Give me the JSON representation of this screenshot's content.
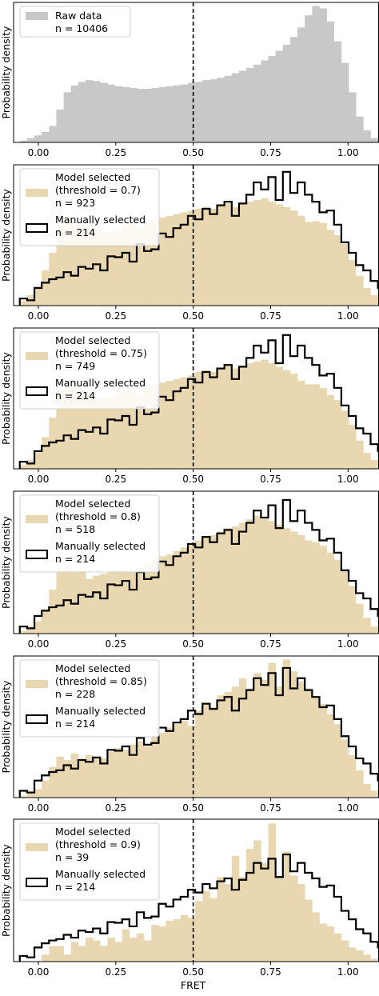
{
  "chart_data": [
    {
      "type": "bar",
      "subtype": "histogram",
      "ylabel": "Probability density",
      "xlim": [
        -0.08,
        1.1
      ],
      "xticks": [
        0.0,
        0.25,
        0.5,
        0.75,
        1.0
      ],
      "xtick_labels": [
        "0.00",
        "0.25",
        "0.50",
        "0.75",
        "1.00"
      ],
      "bin_width": 0.0236,
      "vline": 0.5,
      "legend_placement": "top-left",
      "series": [
        {
          "name": "Raw data",
          "n_label": "n = 10406",
          "style": "filled",
          "color": "#c8c8c8",
          "values": [
            0.02,
            0.05,
            0.08,
            0.12,
            0.19,
            0.38,
            0.58,
            0.66,
            0.7,
            0.72,
            0.71,
            0.69,
            0.67,
            0.65,
            0.64,
            0.63,
            0.62,
            0.62,
            0.63,
            0.64,
            0.65,
            0.66,
            0.67,
            0.69,
            0.7,
            0.72,
            0.73,
            0.75,
            0.77,
            0.8,
            0.83,
            0.86,
            0.9,
            0.95,
            1.0,
            1.06,
            1.13,
            1.22,
            1.33,
            1.47,
            1.58,
            1.55,
            1.4,
            1.17,
            0.92,
            0.58,
            0.3,
            0.14,
            0.05,
            0.02
          ]
        }
      ]
    },
    {
      "type": "bar",
      "subtype": "histogram",
      "ylabel": "Probability density",
      "xlim": [
        -0.08,
        1.1
      ],
      "xticks": [
        0.0,
        0.25,
        0.5,
        0.75,
        1.0
      ],
      "xtick_labels": [
        "0.00",
        "0.25",
        "0.50",
        "0.75",
        "1.00"
      ],
      "bin_width": 0.0236,
      "vline": 0.5,
      "legend_placement": "top-left",
      "series": [
        {
          "name": "Model selected",
          "threshold_label": "(threshold = 0.7)",
          "n_label": "n = 923",
          "style": "filled",
          "color": "#e8d7b0",
          "values": [
            0.05,
            0.12,
            0.22,
            0.4,
            0.6,
            0.92,
            0.98,
            0.94,
            0.9,
            0.88,
            0.86,
            0.84,
            0.82,
            0.85,
            0.9,
            0.92,
            0.88,
            0.94,
            0.98,
            1.0,
            1.02,
            1.04,
            1.06,
            1.08,
            1.1,
            1.12,
            1.1,
            1.14,
            1.16,
            1.12,
            1.15,
            1.18,
            1.2,
            1.22,
            1.18,
            1.15,
            1.12,
            1.08,
            1.02,
            0.95,
            0.96,
            0.94,
            0.86,
            0.8,
            0.7,
            0.52,
            0.34,
            0.2,
            0.12,
            0.06
          ]
        },
        {
          "name": "Manually selected",
          "n_label": "n = 214",
          "style": "step",
          "color": "#000000",
          "values": [
            0.08,
            0.06,
            0.2,
            0.26,
            0.3,
            0.32,
            0.38,
            0.34,
            0.44,
            0.42,
            0.47,
            0.4,
            0.56,
            0.55,
            0.6,
            0.5,
            0.7,
            0.62,
            0.64,
            0.82,
            0.78,
            0.88,
            0.92,
            1.02,
            0.98,
            1.1,
            1.04,
            1.14,
            1.18,
            1.02,
            1.16,
            1.26,
            1.4,
            1.32,
            1.46,
            1.2,
            1.52,
            1.28,
            1.4,
            1.26,
            1.18,
            1.06,
            1.08,
            0.92,
            0.72,
            0.6,
            0.46,
            0.4,
            0.28,
            0.2
          ]
        }
      ]
    },
    {
      "type": "bar",
      "subtype": "histogram",
      "ylabel": "Probability density",
      "xlim": [
        -0.08,
        1.1
      ],
      "xticks": [
        0.0,
        0.25,
        0.5,
        0.75,
        1.0
      ],
      "xtick_labels": [
        "0.00",
        "0.25",
        "0.50",
        "0.75",
        "1.00"
      ],
      "bin_width": 0.0236,
      "vline": 0.5,
      "legend_placement": "top-left",
      "series": [
        {
          "name": "Model selected",
          "threshold_label": "(threshold = 0.75)",
          "n_label": "n = 749",
          "style": "filled",
          "color": "#e8d7b0",
          "values": [
            0.04,
            0.1,
            0.18,
            0.36,
            0.58,
            0.88,
            0.92,
            0.9,
            0.88,
            0.86,
            0.82,
            0.8,
            0.82,
            0.86,
            0.9,
            0.88,
            0.84,
            0.92,
            0.96,
            0.98,
            1.0,
            1.02,
            1.04,
            1.06,
            1.1,
            1.12,
            1.1,
            1.14,
            1.18,
            1.14,
            1.16,
            1.2,
            1.22,
            1.24,
            1.2,
            1.16,
            1.12,
            1.08,
            1.0,
            0.96,
            0.96,
            0.92,
            0.84,
            0.78,
            0.66,
            0.5,
            0.32,
            0.18,
            0.1,
            0.05
          ]
        },
        {
          "name": "Manually selected",
          "n_label": "n = 214",
          "style": "step",
          "color": "#000000",
          "values": [
            0.08,
            0.06,
            0.2,
            0.26,
            0.3,
            0.32,
            0.38,
            0.34,
            0.44,
            0.42,
            0.47,
            0.4,
            0.56,
            0.55,
            0.6,
            0.5,
            0.7,
            0.62,
            0.64,
            0.82,
            0.78,
            0.88,
            0.92,
            1.02,
            0.98,
            1.1,
            1.04,
            1.14,
            1.18,
            1.02,
            1.16,
            1.26,
            1.4,
            1.32,
            1.46,
            1.2,
            1.52,
            1.28,
            1.4,
            1.26,
            1.18,
            1.06,
            1.08,
            0.92,
            0.72,
            0.6,
            0.46,
            0.4,
            0.28,
            0.2
          ]
        }
      ]
    },
    {
      "type": "bar",
      "subtype": "histogram",
      "ylabel": "Probability density",
      "xlim": [
        -0.08,
        1.1
      ],
      "xticks": [
        0.0,
        0.25,
        0.5,
        0.75,
        1.0
      ],
      "xtick_labels": [
        "0.00",
        "0.25",
        "0.50",
        "0.75",
        "1.00"
      ],
      "bin_width": 0.0236,
      "vline": 0.5,
      "legend_placement": "top-left",
      "series": [
        {
          "name": "Model selected",
          "threshold_label": "(threshold = 0.8)",
          "n_label": "n = 518",
          "style": "filled",
          "color": "#e8d7b0",
          "values": [
            0.03,
            0.08,
            0.14,
            0.28,
            0.5,
            0.74,
            0.76,
            0.72,
            0.7,
            0.62,
            0.66,
            0.68,
            0.7,
            0.72,
            0.74,
            0.7,
            0.72,
            0.8,
            0.84,
            0.88,
            0.9,
            0.94,
            0.98,
            1.02,
            1.06,
            1.1,
            1.12,
            1.16,
            1.2,
            1.22,
            1.26,
            1.3,
            1.34,
            1.32,
            1.28,
            1.24,
            1.2,
            1.16,
            1.12,
            1.06,
            1.04,
            1.0,
            0.92,
            0.84,
            0.72,
            0.54,
            0.34,
            0.18,
            0.08,
            0.04
          ]
        },
        {
          "name": "Manually selected",
          "n_label": "n = 214",
          "style": "step",
          "color": "#000000",
          "values": [
            0.08,
            0.06,
            0.2,
            0.26,
            0.3,
            0.32,
            0.38,
            0.34,
            0.44,
            0.42,
            0.47,
            0.4,
            0.56,
            0.55,
            0.6,
            0.5,
            0.7,
            0.62,
            0.64,
            0.82,
            0.78,
            0.88,
            0.92,
            1.02,
            0.98,
            1.1,
            1.04,
            1.14,
            1.18,
            1.02,
            1.16,
            1.26,
            1.4,
            1.32,
            1.46,
            1.2,
            1.52,
            1.28,
            1.4,
            1.26,
            1.18,
            1.06,
            1.08,
            0.92,
            0.72,
            0.6,
            0.46,
            0.4,
            0.28,
            0.2
          ]
        }
      ]
    },
    {
      "type": "bar",
      "subtype": "histogram",
      "ylabel": "Probability density",
      "xlim": [
        -0.08,
        1.1
      ],
      "xticks": [
        0.0,
        0.25,
        0.5,
        0.75,
        1.0
      ],
      "xtick_labels": [
        "0.00",
        "0.25",
        "0.50",
        "0.75",
        "1.00"
      ],
      "bin_width": 0.0236,
      "vline": 0.5,
      "legend_placement": "top-left",
      "series": [
        {
          "name": "Model selected",
          "threshold_label": "(threshold = 0.85)",
          "n_label": "n = 228",
          "style": "filled",
          "color": "#e8d7b0",
          "values": [
            0.02,
            0.06,
            0.1,
            0.2,
            0.36,
            0.48,
            0.44,
            0.52,
            0.46,
            0.5,
            0.48,
            0.46,
            0.54,
            0.58,
            0.56,
            0.62,
            0.66,
            0.6,
            0.72,
            0.76,
            0.82,
            0.86,
            0.9,
            0.84,
            1.02,
            1.12,
            1.06,
            1.2,
            1.24,
            1.3,
            1.4,
            1.28,
            1.46,
            1.38,
            1.58,
            1.3,
            1.62,
            1.48,
            1.36,
            1.28,
            1.18,
            1.1,
            0.98,
            0.86,
            0.68,
            0.5,
            0.32,
            0.16,
            0.08,
            0.04
          ]
        },
        {
          "name": "Manually selected",
          "n_label": "n = 214",
          "style": "step",
          "color": "#000000",
          "values": [
            0.08,
            0.06,
            0.2,
            0.26,
            0.3,
            0.32,
            0.38,
            0.34,
            0.44,
            0.42,
            0.47,
            0.4,
            0.56,
            0.55,
            0.6,
            0.5,
            0.7,
            0.62,
            0.64,
            0.82,
            0.78,
            0.88,
            0.92,
            1.02,
            0.98,
            1.1,
            1.04,
            1.14,
            1.18,
            1.02,
            1.16,
            1.26,
            1.4,
            1.32,
            1.46,
            1.2,
            1.52,
            1.28,
            1.4,
            1.26,
            1.18,
            1.06,
            1.08,
            0.92,
            0.72,
            0.6,
            0.46,
            0.4,
            0.28,
            0.2
          ]
        }
      ]
    },
    {
      "type": "bar",
      "subtype": "histogram",
      "ylabel": "Probability density",
      "xlabel": "FRET",
      "xlim": [
        -0.08,
        1.1
      ],
      "xticks": [
        0.0,
        0.25,
        0.5,
        0.75,
        1.0
      ],
      "xtick_labels": [
        "0.00",
        "0.25",
        "0.50",
        "0.75",
        "1.00"
      ],
      "bin_width": 0.0236,
      "vline": 0.5,
      "legend_placement": "top-left",
      "series": [
        {
          "name": "Model selected",
          "threshold_label": "(threshold = 0.9)",
          "n_label": "n = 39",
          "style": "filled",
          "color": "#e8d7b0",
          "values": [
            0.0,
            0.0,
            0.0,
            0.1,
            0.22,
            0.22,
            0.1,
            0.28,
            0.22,
            0.34,
            0.3,
            0.22,
            0.34,
            0.28,
            0.46,
            0.34,
            0.4,
            0.3,
            0.52,
            0.5,
            0.58,
            0.6,
            0.66,
            0.62,
            0.86,
            1.0,
            0.9,
            1.2,
            1.1,
            1.5,
            1.2,
            1.6,
            1.72,
            1.4,
            1.96,
            1.2,
            1.56,
            1.22,
            1.1,
            0.88,
            0.7,
            0.54,
            0.5,
            0.4,
            0.3,
            0.2,
            0.16,
            0.1,
            0.04,
            0.0
          ]
        },
        {
          "name": "Manually selected",
          "n_label": "n = 214",
          "style": "step",
          "color": "#000000",
          "values": [
            0.08,
            0.06,
            0.2,
            0.26,
            0.3,
            0.32,
            0.38,
            0.34,
            0.44,
            0.42,
            0.47,
            0.4,
            0.56,
            0.55,
            0.6,
            0.5,
            0.7,
            0.62,
            0.64,
            0.82,
            0.78,
            0.88,
            0.92,
            1.02,
            0.98,
            1.1,
            1.04,
            1.14,
            1.18,
            1.02,
            1.16,
            1.26,
            1.4,
            1.32,
            1.46,
            1.2,
            1.52,
            1.28,
            1.4,
            1.26,
            1.18,
            1.06,
            1.08,
            0.92,
            0.72,
            0.6,
            0.46,
            0.4,
            0.28,
            0.2
          ]
        }
      ]
    }
  ]
}
